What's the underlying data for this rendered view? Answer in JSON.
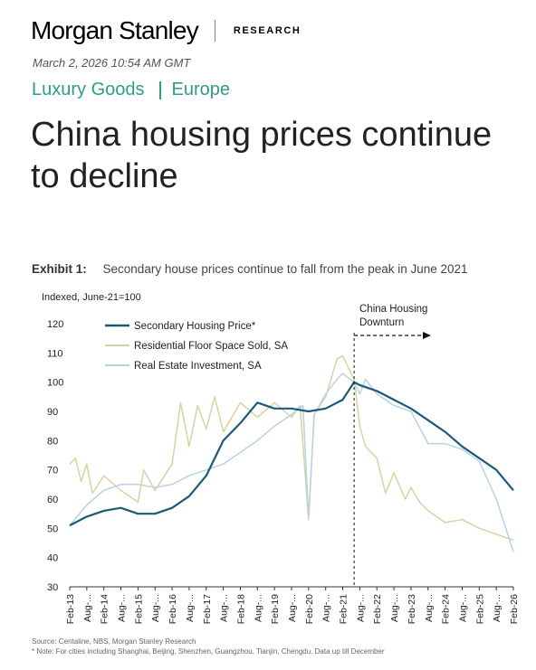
{
  "header": {
    "brand": "Morgan Stanley",
    "section": "RESEARCH",
    "timestamp": "March 2, 2026 10:54 AM GMT"
  },
  "tags": {
    "industry": "Luxury Goods",
    "region": "Europe"
  },
  "headline": "China housing prices continue to decline",
  "exhibit": {
    "label": "Exhibit 1:",
    "title": "Secondary house prices continue to fall from the peak in June 2021"
  },
  "footnotes": {
    "source": "Source: Centaline, NBS, Morgan Stanley Research",
    "note": "* Note: For cities including Shanghai, Beijing, Shenzhen, Guangzhou, Tianjin, Chengdu. Data up till December"
  },
  "colors": {
    "secondary": "#1b5a78",
    "floor": "#d6d3a4",
    "investment": "#b8d3df",
    "accent": "#2e9c86"
  },
  "chart_data": {
    "type": "line",
    "ylabel": "Indexed, June-21=100",
    "ylim": [
      30,
      120
    ],
    "yticks": [
      30,
      40,
      50,
      60,
      70,
      80,
      90,
      100,
      110,
      120
    ],
    "x_tick_labels": [
      "Feb-13",
      "Aug-...",
      "Feb-14",
      "Aug-...",
      "Feb-15",
      "Aug-...",
      "Feb-16",
      "Aug-...",
      "Feb-17",
      "Aug-...",
      "Feb-18",
      "Aug-...",
      "Feb-19",
      "Aug-...",
      "Feb-20",
      "Aug-...",
      "Feb-21",
      "Aug-...",
      "Feb-22",
      "Aug-...",
      "Feb-23",
      "Aug-...",
      "Feb-24",
      "Aug-...",
      "Feb-25",
      "Aug-...",
      "Feb-26"
    ],
    "legend_position": "top-left",
    "annotation": {
      "line1": "China Housing",
      "line2": "Downturn",
      "x": "Jun-21"
    },
    "series": [
      {
        "name": "Secondary Housing Price*",
        "color": "#1b5a78",
        "points": [
          [
            "Feb-13",
            51
          ],
          [
            "Aug-13",
            54
          ],
          [
            "Feb-14",
            56
          ],
          [
            "Aug-14",
            57
          ],
          [
            "Feb-15",
            55
          ],
          [
            "Aug-15",
            55
          ],
          [
            "Feb-16",
            57
          ],
          [
            "Aug-16",
            61
          ],
          [
            "Feb-17",
            68
          ],
          [
            "Aug-17",
            80
          ],
          [
            "Feb-18",
            86
          ],
          [
            "Aug-18",
            93
          ],
          [
            "Feb-19",
            91
          ],
          [
            "Aug-19",
            91
          ],
          [
            "Feb-20",
            90
          ],
          [
            "Aug-20",
            91
          ],
          [
            "Feb-21",
            94
          ],
          [
            "Jun-21",
            100
          ],
          [
            "Aug-21",
            99
          ],
          [
            "Feb-22",
            97
          ],
          [
            "Aug-22",
            94
          ],
          [
            "Feb-23",
            91
          ],
          [
            "Aug-23",
            87
          ],
          [
            "Feb-24",
            83
          ],
          [
            "Aug-24",
            78
          ],
          [
            "Feb-25",
            74
          ],
          [
            "Aug-25",
            70
          ],
          [
            "Feb-26",
            63
          ]
        ]
      },
      {
        "name": "Residential Floor Space Sold, SA",
        "color": "#d6d3a4",
        "points": [
          [
            "Feb-13",
            72
          ],
          [
            "Apr-13",
            74
          ],
          [
            "Jun-13",
            66
          ],
          [
            "Aug-13",
            72
          ],
          [
            "Oct-13",
            62
          ],
          [
            "Feb-14",
            68
          ],
          [
            "Aug-14",
            63
          ],
          [
            "Feb-15",
            59
          ],
          [
            "Apr-15",
            70
          ],
          [
            "Aug-15",
            63
          ],
          [
            "Feb-16",
            72
          ],
          [
            "May-16",
            93
          ],
          [
            "Aug-16",
            78
          ],
          [
            "Nov-16",
            92
          ],
          [
            "Feb-17",
            84
          ],
          [
            "May-17",
            95
          ],
          [
            "Aug-17",
            83
          ],
          [
            "Feb-18",
            93
          ],
          [
            "Aug-18",
            88
          ],
          [
            "Feb-19",
            93
          ],
          [
            "Aug-19",
            88
          ],
          [
            "Nov-19",
            92
          ],
          [
            "Feb-20",
            53
          ],
          [
            "Apr-20",
            89
          ],
          [
            "Aug-20",
            95
          ],
          [
            "Dec-20",
            108
          ],
          [
            "Feb-21",
            109
          ],
          [
            "Jun-21",
            101
          ],
          [
            "Aug-21",
            85
          ],
          [
            "Oct-21",
            78
          ],
          [
            "Feb-22",
            74
          ],
          [
            "May-22",
            62
          ],
          [
            "Aug-22",
            69
          ],
          [
            "Dec-22",
            60
          ],
          [
            "Feb-23",
            64
          ],
          [
            "May-23",
            59
          ],
          [
            "Aug-23",
            56
          ],
          [
            "Feb-24",
            52
          ],
          [
            "Aug-24",
            53
          ],
          [
            "Feb-25",
            50
          ],
          [
            "Aug-25",
            48
          ],
          [
            "Feb-26",
            46
          ]
        ]
      },
      {
        "name": "Real Estate Investment, SA",
        "color": "#b8d3df",
        "points": [
          [
            "Feb-13",
            51
          ],
          [
            "Aug-13",
            58
          ],
          [
            "Feb-14",
            63
          ],
          [
            "Aug-14",
            65
          ],
          [
            "Feb-15",
            65
          ],
          [
            "Aug-15",
            64
          ],
          [
            "Feb-16",
            65
          ],
          [
            "Aug-16",
            68
          ],
          [
            "Feb-17",
            70
          ],
          [
            "Aug-17",
            72
          ],
          [
            "Feb-18",
            76
          ],
          [
            "Aug-18",
            80
          ],
          [
            "Feb-19",
            85
          ],
          [
            "Aug-19",
            89
          ],
          [
            "Dec-19",
            92
          ],
          [
            "Feb-20",
            54
          ],
          [
            "Apr-20",
            89
          ],
          [
            "Aug-20",
            96
          ],
          [
            "Dec-20",
            101
          ],
          [
            "Feb-21",
            103
          ],
          [
            "Jun-21",
            100
          ],
          [
            "Aug-21",
            96
          ],
          [
            "Oct-21",
            101
          ],
          [
            "Feb-22",
            96
          ],
          [
            "Aug-22",
            92
          ],
          [
            "Feb-23",
            90
          ],
          [
            "Aug-23",
            79
          ],
          [
            "Feb-24",
            79
          ],
          [
            "Aug-24",
            77
          ],
          [
            "Feb-25",
            73
          ],
          [
            "Aug-25",
            60
          ],
          [
            "Feb-26",
            42
          ]
        ]
      }
    ]
  }
}
